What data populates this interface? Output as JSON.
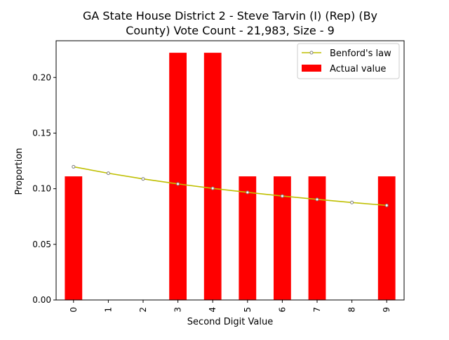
{
  "chart_data": {
    "type": "bar",
    "title_lines": [
      "GA State House District 2 - Steve Tarvin (I) (Rep) (By",
      "County) Vote Count - 21,983, Size - 9"
    ],
    "xlabel": "Second Digit Value",
    "ylabel": "Proportion",
    "categories": [
      "0",
      "1",
      "2",
      "3",
      "4",
      "5",
      "6",
      "7",
      "8",
      "9"
    ],
    "ylim": [
      0,
      0.233
    ],
    "yticks": [
      0.0,
      0.05,
      0.1,
      0.15,
      0.2
    ],
    "ytick_labels": [
      "0.00",
      "0.05",
      "0.10",
      "0.15",
      "0.20"
    ],
    "grid": false,
    "legend_position": "top-right",
    "series": [
      {
        "name": "Actual value",
        "kind": "bar",
        "color": "#ff0000",
        "values": [
          0.1111,
          0,
          0,
          0.2222,
          0.2222,
          0.1111,
          0.1111,
          0.1111,
          0,
          0.1111
        ]
      },
      {
        "name": "Benford's law",
        "kind": "line",
        "color": "#bfbf00",
        "marker_color": "#7f7f7f",
        "values": [
          0.1197,
          0.1139,
          0.1088,
          0.1043,
          0.1003,
          0.0967,
          0.0934,
          0.0904,
          0.0876,
          0.085
        ]
      }
    ]
  }
}
